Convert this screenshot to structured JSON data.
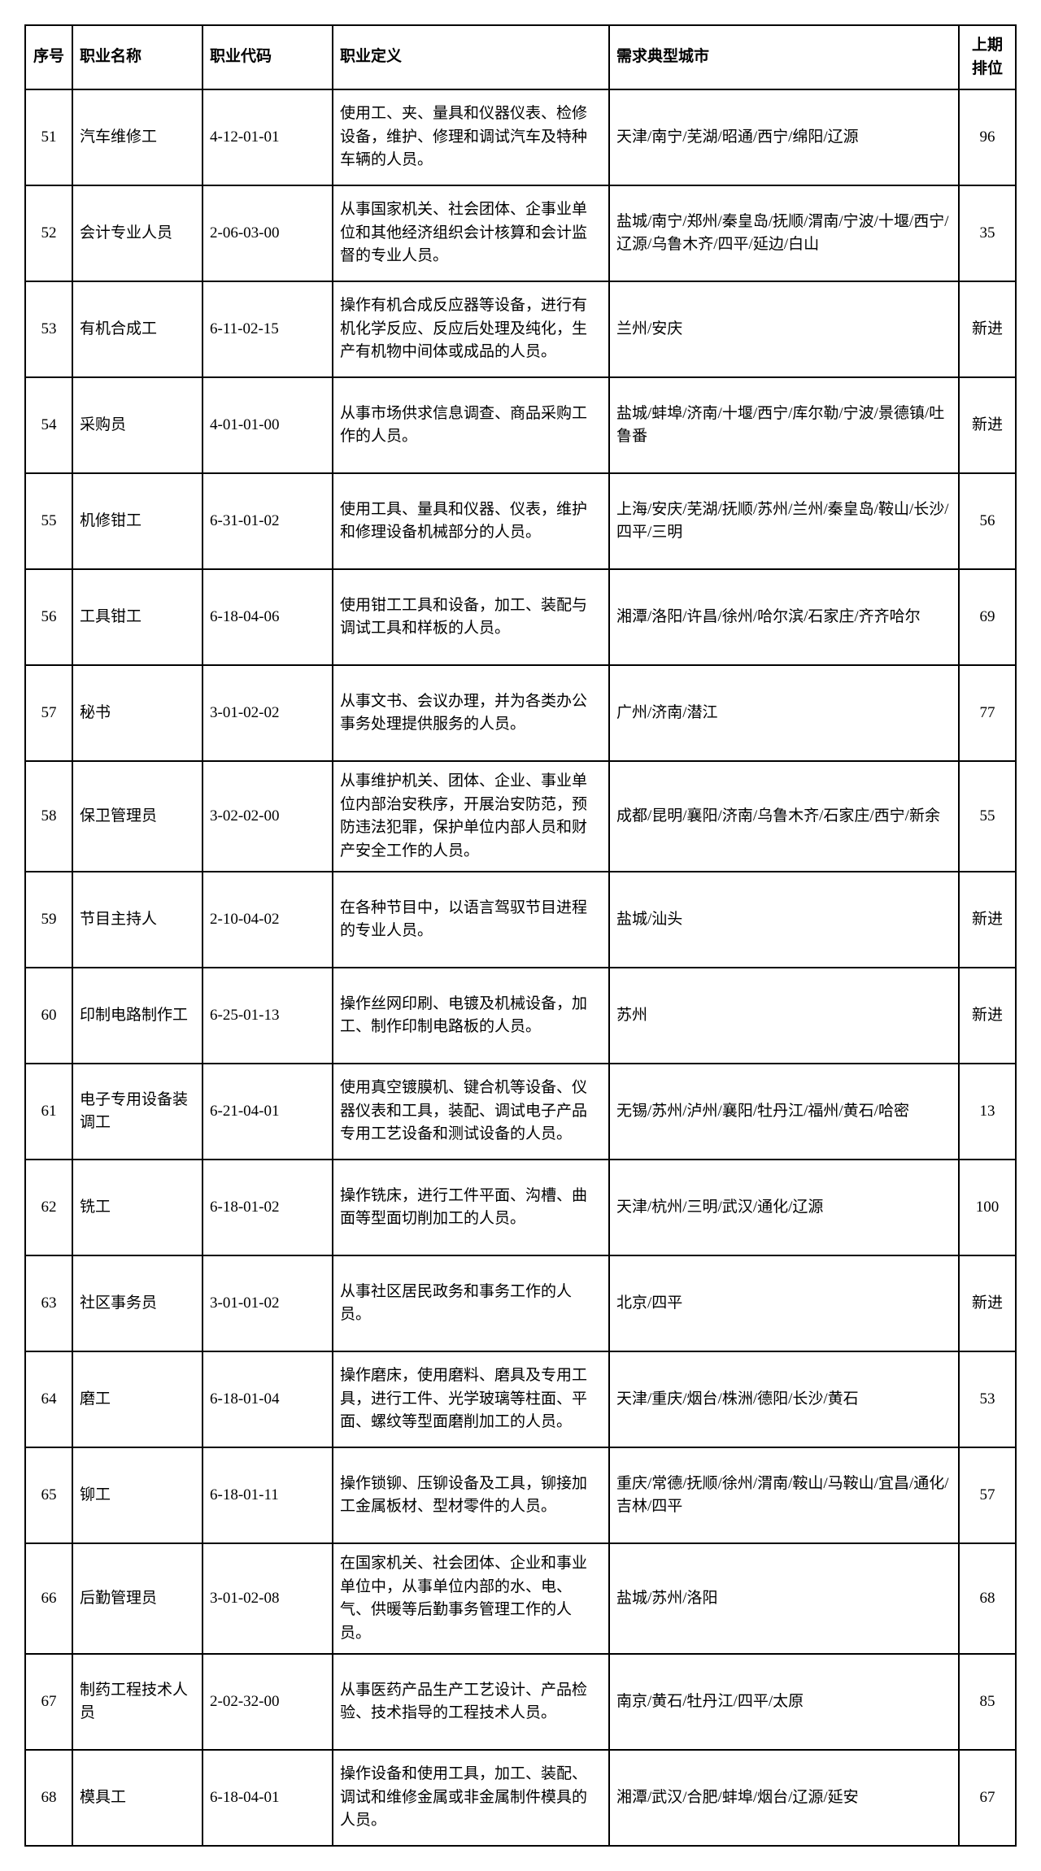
{
  "table": {
    "headers": {
      "index": "序号",
      "name": "职业名称",
      "code": "职业代码",
      "definition": "职业定义",
      "cities": "需求典型城市",
      "prev_rank": "上期排位"
    },
    "rows": [
      {
        "idx": "51",
        "name": "汽车维修工",
        "code": "4-12-01-01",
        "def": "使用工、夹、量具和仪器仪表、检修设备，维护、修理和调试汽车及特种车辆的人员。",
        "city": "天津/南宁/芜湖/昭通/西宁/绵阳/辽源",
        "rank": "96"
      },
      {
        "idx": "52",
        "name": "会计专业人员",
        "code": "2-06-03-00",
        "def": "从事国家机关、社会团体、企事业单位和其他经济组织会计核算和会计监督的专业人员。",
        "city": "盐城/南宁/郑州/秦皇岛/抚顺/渭南/宁波/十堰/西宁/辽源/乌鲁木齐/四平/延边/白山",
        "rank": "35"
      },
      {
        "idx": "53",
        "name": "有机合成工",
        "code": "6-11-02-15",
        "def": "操作有机合成反应器等设备，进行有机化学反应、反应后处理及纯化，生产有机物中间体或成品的人员。",
        "city": "兰州/安庆",
        "rank": "新进"
      },
      {
        "idx": "54",
        "name": "采购员",
        "code": "4-01-01-00",
        "def": "从事市场供求信息调查、商品采购工作的人员。",
        "city": "盐城/蚌埠/济南/十堰/西宁/库尔勒/宁波/景德镇/吐鲁番",
        "rank": "新进"
      },
      {
        "idx": "55",
        "name": "机修钳工",
        "code": "6-31-01-02",
        "def": "使用工具、量具和仪器、仪表，维护和修理设备机械部分的人员。",
        "city": "上海/安庆/芜湖/抚顺/苏州/兰州/秦皇岛/鞍山/长沙/四平/三明",
        "rank": "56"
      },
      {
        "idx": "56",
        "name": "工具钳工",
        "code": "6-18-04-06",
        "def": "使用钳工工具和设备，加工、装配与调试工具和样板的人员。",
        "city": "湘潭/洛阳/许昌/徐州/哈尔滨/石家庄/齐齐哈尔",
        "rank": "69"
      },
      {
        "idx": "57",
        "name": "秘书",
        "code": "3-01-02-02",
        "def": "从事文书、会议办理，并为各类办公事务处理提供服务的人员。",
        "city": "广州/济南/潜江",
        "rank": "77"
      },
      {
        "idx": "58",
        "name": "保卫管理员",
        "code": "3-02-02-00",
        "def": "从事维护机关、团体、企业、事业单位内部治安秩序，开展治安防范，预防违法犯罪，保护单位内部人员和财产安全工作的人员。",
        "city": "成都/昆明/襄阳/济南/乌鲁木齐/石家庄/西宁/新余",
        "rank": "55"
      },
      {
        "idx": "59",
        "name": "节目主持人",
        "code": "2-10-04-02",
        "def": "在各种节目中，以语言驾驭节目进程的专业人员。",
        "city": "盐城/汕头",
        "rank": "新进"
      },
      {
        "idx": "60",
        "name": "印制电路制作工",
        "code": "6-25-01-13",
        "def": "操作丝网印刷、电镀及机械设备，加工、制作印制电路板的人员。",
        "city": "苏州",
        "rank": "新进"
      },
      {
        "idx": "61",
        "name": "电子专用设备装调工",
        "code": "6-21-04-01",
        "def": "使用真空镀膜机、键合机等设备、仪器仪表和工具，装配、调试电子产品专用工艺设备和测试设备的人员。",
        "city": "无锡/苏州/泸州/襄阳/牡丹江/福州/黄石/哈密",
        "rank": "13"
      },
      {
        "idx": "62",
        "name": "铣工",
        "code": "6-18-01-02",
        "def": "操作铣床，进行工件平面、沟槽、曲面等型面切削加工的人员。",
        "city": "天津/杭州/三明/武汉/通化/辽源",
        "rank": "100"
      },
      {
        "idx": "63",
        "name": "社区事务员",
        "code": "3-01-01-02",
        "def": "从事社区居民政务和事务工作的人员。",
        "city": "北京/四平",
        "rank": "新进"
      },
      {
        "idx": "64",
        "name": "磨工",
        "code": "6-18-01-04",
        "def": "操作磨床，使用磨料、磨具及专用工具，进行工件、光学玻璃等柱面、平面、螺纹等型面磨削加工的人员。",
        "city": "天津/重庆/烟台/株洲/德阳/长沙/黄石",
        "rank": "53"
      },
      {
        "idx": "65",
        "name": "铆工",
        "code": "6-18-01-11",
        "def": "操作锁铆、压铆设备及工具，铆接加工金属板材、型材零件的人员。",
        "city": "重庆/常德/抚顺/徐州/渭南/鞍山/马鞍山/宜昌/通化/吉林/四平",
        "rank": "57"
      },
      {
        "idx": "66",
        "name": "后勤管理员",
        "code": "3-01-02-08",
        "def": "在国家机关、社会团体、企业和事业单位中，从事单位内部的水、电、气、供暖等后勤事务管理工作的人员。",
        "city": "盐城/苏州/洛阳",
        "rank": "68"
      },
      {
        "idx": "67",
        "name": "制药工程技术人员",
        "code": "2-02-32-00",
        "def": "从事医药产品生产工艺设计、产品检验、技术指导的工程技术人员。",
        "city": "南京/黄石/牡丹江/四平/太原",
        "rank": "85"
      },
      {
        "idx": "68",
        "name": "模具工",
        "code": "6-18-04-01",
        "def": "操作设备和使用工具，加工、装配、调试和维修金属或非金属制件模具的人员。",
        "city": "湘潭/武汉/合肥/蚌埠/烟台/辽源/延安",
        "rank": "67"
      }
    ]
  }
}
